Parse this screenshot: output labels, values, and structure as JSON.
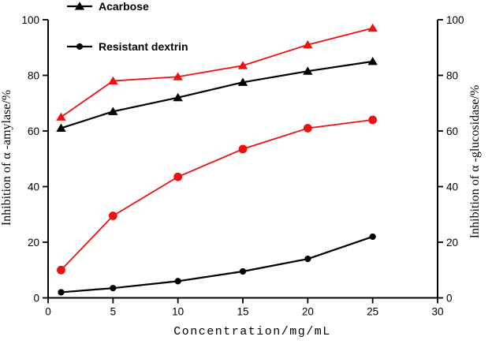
{
  "figure": {
    "legend": [
      {
        "label": "Acarbose",
        "marker": "triangle"
      },
      {
        "label": "Resistant dextrin",
        "marker": "circle"
      }
    ]
  },
  "chart_data": {
    "type": "line",
    "title": "",
    "xlabel": "Concentration/mg/mL",
    "ylabel_left": "Inhibition of α -amylase/%",
    "ylabel_right": "Inhibition of α -glucosidase/%",
    "xlim": [
      0,
      30
    ],
    "ylim": [
      0,
      100
    ],
    "ylim_right": [
      0,
      100
    ],
    "x_ticks": [
      0,
      5,
      10,
      15,
      20,
      25,
      30
    ],
    "y_ticks": [
      0,
      20,
      40,
      60,
      80,
      100
    ],
    "grid": false,
    "legend_position": "top-left",
    "colors": {
      "black": "#000000",
      "red": "#ee1111"
    },
    "x": [
      1,
      5,
      10,
      15,
      20,
      25
    ],
    "series": [
      {
        "id": "acarbose-alpha-amylase",
        "name": "Acarbose — α-amylase inhibition (left axis)",
        "color": "#000000",
        "marker": "triangle",
        "values": [
          61,
          67,
          72,
          77.5,
          81.5,
          85
        ]
      },
      {
        "id": "resistant-dextrin-alpha-amylase",
        "name": "Resistant dextrin — α-amylase inhibition (left axis)",
        "color": "#000000",
        "marker": "circle",
        "values": [
          2,
          3.5,
          6,
          9.5,
          14,
          22
        ]
      },
      {
        "id": "acarbose-alpha-glucosidase",
        "name": "Acarbose — α-glucosidase inhibition (right axis)",
        "color": "#ee1111",
        "marker": "triangle",
        "values": [
          65,
          78,
          79.5,
          83.5,
          91,
          97
        ]
      },
      {
        "id": "resistant-dextrin-alpha-glucosidase",
        "name": "Resistant dextrin — α-glucosidase inhibition (right axis)",
        "color": "#ee1111",
        "marker": "circle",
        "values": [
          10,
          29.5,
          43.5,
          53.5,
          61,
          64
        ]
      }
    ]
  }
}
